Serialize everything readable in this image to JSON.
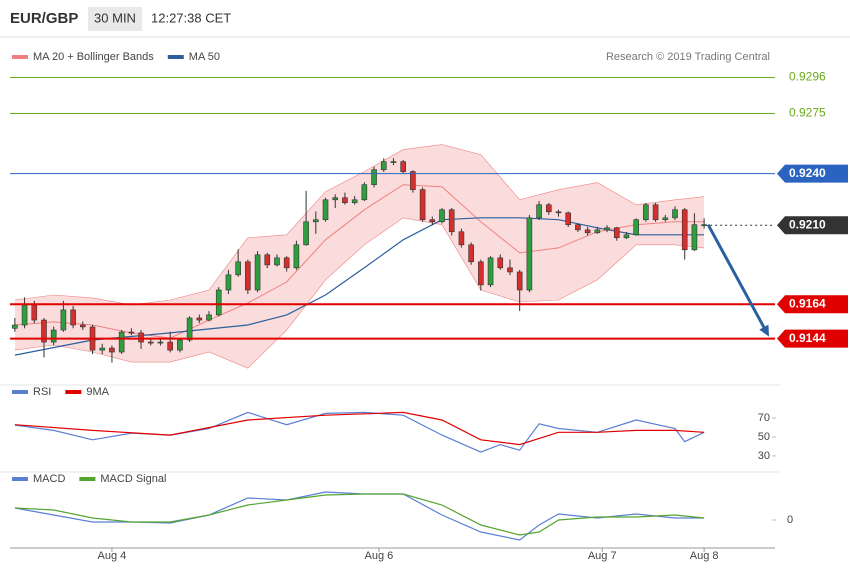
{
  "header": {
    "symbol": "EUR/GBP",
    "timeframe": "30 MIN",
    "time": "12:27:38 CET"
  },
  "chart_data": [
    {
      "type": "candlestick",
      "credit": "Research © 2019 Trading Central",
      "xlim": [
        -0.5,
        78.3
      ],
      "ylim": [
        0.9117,
        0.9305
      ],
      "up_color": "#2e9e3e",
      "down_color": "#d32f2f",
      "x": [
        0,
        1,
        2,
        3,
        4,
        5,
        6,
        7,
        8,
        9,
        10,
        11,
        12,
        13,
        14,
        15,
        16,
        17,
        18,
        19,
        20,
        21,
        22,
        23,
        24,
        25,
        26,
        27,
        28,
        29,
        30,
        31,
        32,
        33,
        34,
        35,
        36,
        37,
        38,
        39,
        40,
        41,
        42,
        43,
        44,
        45,
        46,
        47,
        48,
        49,
        50,
        51,
        52,
        53,
        54,
        55,
        56,
        57,
        58,
        59,
        60,
        61,
        62,
        63,
        64,
        65,
        66,
        67,
        68,
        69,
        70,
        71
      ],
      "ohlc": [
        [
          0.915,
          0.9156,
          0.9148,
          0.91519
        ],
        [
          0.91519,
          0.9168,
          0.915,
          0.91636
        ],
        [
          0.91636,
          0.9166,
          0.9153,
          0.91548
        ],
        [
          0.91548,
          0.9156,
          0.9133,
          0.9142
        ],
        [
          0.9142,
          0.9151,
          0.914,
          0.9149
        ],
        [
          0.9149,
          0.9166,
          0.9148,
          0.91607
        ],
        [
          0.91607,
          0.9163,
          0.915,
          0.91519
        ],
        [
          0.91519,
          0.9154,
          0.9149,
          0.91508
        ],
        [
          0.91508,
          0.9152,
          0.9135,
          0.91373
        ],
        [
          0.91373,
          0.9141,
          0.9135,
          0.91385
        ],
        [
          0.91385,
          0.914,
          0.913,
          0.91362
        ],
        [
          0.91362,
          0.9149,
          0.9135,
          0.91478
        ],
        [
          0.91478,
          0.915,
          0.9146,
          0.91473
        ],
        [
          0.91473,
          0.9149,
          0.9138,
          0.9142
        ],
        [
          0.9142,
          0.9144,
          0.914,
          0.91414
        ],
        [
          0.91414,
          0.9144,
          0.914,
          0.9142
        ],
        [
          0.9142,
          0.9148,
          0.9136,
          0.91373
        ],
        [
          0.91373,
          0.9144,
          0.9136,
          0.91432
        ],
        [
          0.91432,
          0.9157,
          0.9142,
          0.9156
        ],
        [
          0.9156,
          0.9158,
          0.9153,
          0.91548
        ],
        [
          0.91548,
          0.916,
          0.9154,
          0.91578
        ],
        [
          0.91578,
          0.9174,
          0.9157,
          0.91723
        ],
        [
          0.91723,
          0.9184,
          0.917,
          0.91811
        ],
        [
          0.91811,
          0.9196,
          0.918,
          0.91887
        ],
        [
          0.91887,
          0.919,
          0.917,
          0.91723
        ],
        [
          0.91723,
          0.9195,
          0.9171,
          0.91928
        ],
        [
          0.91928,
          0.9194,
          0.9185,
          0.91869
        ],
        [
          0.91869,
          0.9193,
          0.9186,
          0.9191
        ],
        [
          0.9191,
          0.9192,
          0.9183,
          0.91852
        ],
        [
          0.91852,
          0.9201,
          0.9184,
          0.91986
        ],
        [
          0.91986,
          0.923,
          0.9198,
          0.9212
        ],
        [
          0.9212,
          0.9218,
          0.9205,
          0.92132
        ],
        [
          0.92132,
          0.9226,
          0.9212,
          0.92248
        ],
        [
          0.92248,
          0.9228,
          0.922,
          0.9226
        ],
        [
          0.9226,
          0.9229,
          0.9222,
          0.92231
        ],
        [
          0.92231,
          0.9227,
          0.9222,
          0.92248
        ],
        [
          0.92248,
          0.9235,
          0.9224,
          0.92336
        ],
        [
          0.92336,
          0.9244,
          0.9232,
          0.92423
        ],
        [
          0.92423,
          0.9249,
          0.9241,
          0.9247
        ],
        [
          0.9247,
          0.9249,
          0.9245,
          0.9247
        ],
        [
          0.9247,
          0.9248,
          0.924,
          0.92412
        ],
        [
          0.92412,
          0.9242,
          0.9229,
          0.92307
        ],
        [
          0.92307,
          0.9232,
          0.9212,
          0.92132
        ],
        [
          0.92132,
          0.9215,
          0.921,
          0.9212
        ],
        [
          0.9212,
          0.922,
          0.9211,
          0.9219
        ],
        [
          0.9219,
          0.922,
          0.9204,
          0.92062
        ],
        [
          0.92062,
          0.9208,
          0.9197,
          0.91986
        ],
        [
          0.91986,
          0.92,
          0.9187,
          0.91887
        ],
        [
          0.91887,
          0.919,
          0.9172,
          0.91753
        ],
        [
          0.91753,
          0.9192,
          0.9174,
          0.9191
        ],
        [
          0.9191,
          0.9193,
          0.9184,
          0.91852
        ],
        [
          0.91852,
          0.919,
          0.9181,
          0.91828
        ],
        [
          0.91828,
          0.9184,
          0.916,
          0.91723
        ],
        [
          0.91723,
          0.9216,
          0.9171,
          0.92143
        ],
        [
          0.92143,
          0.9224,
          0.9213,
          0.92219
        ],
        [
          0.92219,
          0.9223,
          0.9216,
          0.92178
        ],
        [
          0.92178,
          0.9219,
          0.9215,
          0.92172
        ],
        [
          0.92172,
          0.9218,
          0.9209,
          0.92103
        ],
        [
          0.92103,
          0.9211,
          0.9206,
          0.92073
        ],
        [
          0.92073,
          0.9209,
          0.9204,
          0.92056
        ],
        [
          0.92056,
          0.9209,
          0.9205,
          0.92073
        ],
        [
          0.92073,
          0.921,
          0.9206,
          0.92085
        ],
        [
          0.92085,
          0.9209,
          0.9201,
          0.92027
        ],
        [
          0.92027,
          0.9206,
          0.9202,
          0.92044
        ],
        [
          0.92044,
          0.9214,
          0.9204,
          0.92132
        ],
        [
          0.92132,
          0.9223,
          0.9212,
          0.92219
        ],
        [
          0.92219,
          0.9223,
          0.9212,
          0.92132
        ],
        [
          0.92132,
          0.9216,
          0.9212,
          0.92143
        ],
        [
          0.92143,
          0.9221,
          0.9213,
          0.9219
        ],
        [
          0.9219,
          0.922,
          0.919,
          0.91957
        ],
        [
          0.91957,
          0.9217,
          0.9195,
          0.92103
        ],
        [
          0.92103,
          0.9214,
          0.9208,
          0.92103
        ]
      ],
      "series": [
        {
          "name": "MA 20 + Bollinger Bands",
          "color": "#f08080",
          "x": [
            0,
            4,
            8,
            12,
            16,
            20,
            24,
            28,
            32,
            36,
            40,
            44,
            48,
            52,
            56,
            60,
            64,
            68,
            71
          ],
          "upper": [
            0.91665,
            0.91694,
            0.91677,
            0.91636,
            0.91665,
            0.91723,
            0.92027,
            0.92044,
            0.92295,
            0.92412,
            0.9254,
            0.92569,
            0.92511,
            0.92248,
            0.92307,
            0.92348,
            0.92219,
            0.92248,
            0.92266
          ],
          "lower": [
            0.91373,
            0.91403,
            0.91362,
            0.91303,
            0.91303,
            0.91362,
            0.91268,
            0.9149,
            0.91782,
            0.91986,
            0.92143,
            0.92103,
            0.91723,
            0.91653,
            0.91665,
            0.91782,
            0.91986,
            0.91986,
            0.91968
          ],
          "values": [
            0.91519,
            0.91537,
            0.91519,
            0.91473,
            0.91443,
            0.91548,
            0.91647,
            0.9177,
            0.92015,
            0.9219,
            0.92336,
            0.92324,
            0.9212,
            0.91939,
            0.91968,
            0.92062,
            0.92103,
            0.9212,
            0.9212
          ]
        },
        {
          "name": "MA 50",
          "color": "#2b5f9e",
          "x": [
            0,
            8,
            16,
            24,
            28,
            32,
            36,
            40,
            44,
            48,
            52,
            56,
            60,
            64,
            68,
            71
          ],
          "values": [
            0.91344,
            0.91432,
            0.91473,
            0.91519,
            0.91578,
            0.91694,
            0.91852,
            0.92015,
            0.92132,
            0.92143,
            0.92143,
            0.92132,
            0.92085,
            0.92044,
            0.92044,
            0.92044
          ]
        }
      ],
      "levels": [
        {
          "value": 0.9296,
          "color": "#6aaa1e",
          "style": "text"
        },
        {
          "value": 0.9275,
          "color": "#6aaa1e",
          "style": "text"
        },
        {
          "value": 0.924,
          "label": "0.9240",
          "color": "#2b64c0",
          "style": "box"
        },
        {
          "value": 0.921,
          "label": "0.9210",
          "color": "#333333",
          "style": "box",
          "dash": true
        },
        {
          "value": 0.9164,
          "color": "#e00000",
          "style": "box"
        },
        {
          "value": 0.9144,
          "color": "#e00000",
          "style": "box"
        }
      ]
    },
    {
      "type": "line",
      "xlim": [
        -0.5,
        78.3
      ],
      "ylim": [
        13,
        87
      ],
      "yticks": [
        70,
        50,
        30
      ],
      "series": [
        {
          "name": "RSI",
          "color": "#5b7fd6",
          "x": [
            0,
            4,
            8,
            12,
            16,
            20,
            24,
            28,
            32,
            36,
            40,
            44,
            48,
            50,
            52,
            54,
            56,
            60,
            64,
            68,
            69,
            71
          ],
          "values": [
            62.6,
            57,
            47,
            54,
            52,
            59,
            76,
            63,
            75,
            76,
            73,
            52,
            34,
            42,
            36,
            64,
            59,
            55,
            68,
            59,
            45,
            55
          ]
        },
        {
          "name": "9MA",
          "color": "#e00000",
          "x": [
            0,
            8,
            16,
            24,
            32,
            40,
            44,
            48,
            52,
            56,
            60,
            64,
            68,
            71
          ],
          "values": [
            63,
            57,
            52,
            68,
            73,
            76,
            68,
            47,
            42,
            55,
            55,
            57,
            57,
            55
          ]
        }
      ]
    },
    {
      "type": "line",
      "xlim": [
        -0.5,
        78.3
      ],
      "ylim": [
        -0.00056,
        0.0007
      ],
      "yticks": [
        0
      ],
      "xticks": [
        {
          "value": 10,
          "label": "Aug 4"
        },
        {
          "value": 37.5,
          "label": "Aug 6"
        },
        {
          "value": 60.5,
          "label": "Aug 7"
        },
        {
          "value": 71,
          "label": "Aug 8"
        }
      ],
      "series": [
        {
          "name": "MACD",
          "color": "#5b7fd6",
          "x": [
            0,
            4,
            8,
            12,
            16,
            20,
            24,
            28,
            32,
            36,
            40,
            44,
            48,
            52,
            54,
            56,
            60,
            64,
            68,
            71
          ],
          "values": [
            0.00024,
            0.0001,
            -4e-05,
            -4e-05,
            -6e-05,
            0.0001,
            0.00044,
            0.0004,
            0.00056,
            0.00052,
            0.00052,
            0.0001,
            -0.00024,
            -0.0004,
            -0.0001,
            0.00012,
            4e-05,
            0.00012,
            4e-05,
            4e-05
          ]
        },
        {
          "name": "MACD Signal",
          "color": "#55a630",
          "x": [
            0,
            4,
            8,
            12,
            16,
            20,
            24,
            28,
            32,
            36,
            40,
            44,
            48,
            52,
            54,
            56,
            60,
            64,
            68,
            71
          ],
          "values": [
            0.00024,
            0.0002,
            4e-05,
            -4e-05,
            -4e-05,
            0.0001,
            0.0003,
            0.0004,
            0.0005,
            0.00052,
            0.00052,
            0.0003,
            -0.0001,
            -0.0003,
            -0.00024,
            0,
            6e-05,
            6e-05,
            0.0001,
            4e-05
          ]
        }
      ]
    }
  ]
}
